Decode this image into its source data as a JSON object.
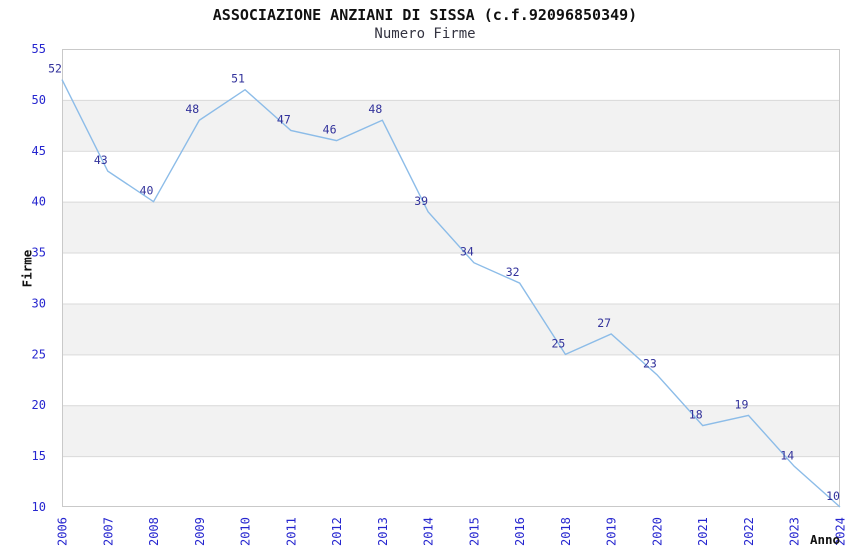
{
  "chart_data": {
    "type": "line",
    "title": "ASSOCIAZIONE ANZIANI DI SISSA (c.f.92096850349)",
    "subtitle": "Numero Firme",
    "xlabel": "Anno",
    "ylabel": "Firme",
    "categories": [
      "2006",
      "2007",
      "2008",
      "2009",
      "2010",
      "2011",
      "2012",
      "2013",
      "2014",
      "2015",
      "2016",
      "2018",
      "2019",
      "2020",
      "2021",
      "2022",
      "2023",
      "2024"
    ],
    "values": [
      52,
      43,
      40,
      48,
      51,
      47,
      46,
      48,
      39,
      34,
      32,
      25,
      27,
      23,
      18,
      19,
      14,
      10
    ],
    "ylim": [
      10,
      55
    ],
    "ytick_step": 5,
    "grid": "horizontal-only",
    "legend": "none",
    "markers": "none",
    "data_labels_shown": true,
    "alternating_bands": true,
    "colors": {
      "line": "#8cbce8",
      "data_label": "#32329b",
      "tick_label": "#2626cf",
      "band": "#f2f2f2",
      "gridline": "#d9d9d9",
      "border": "#c9c9c9",
      "title": "#111111",
      "subtitle": "#333340",
      "axis_title": "#111111",
      "background": "#ffffff"
    }
  }
}
